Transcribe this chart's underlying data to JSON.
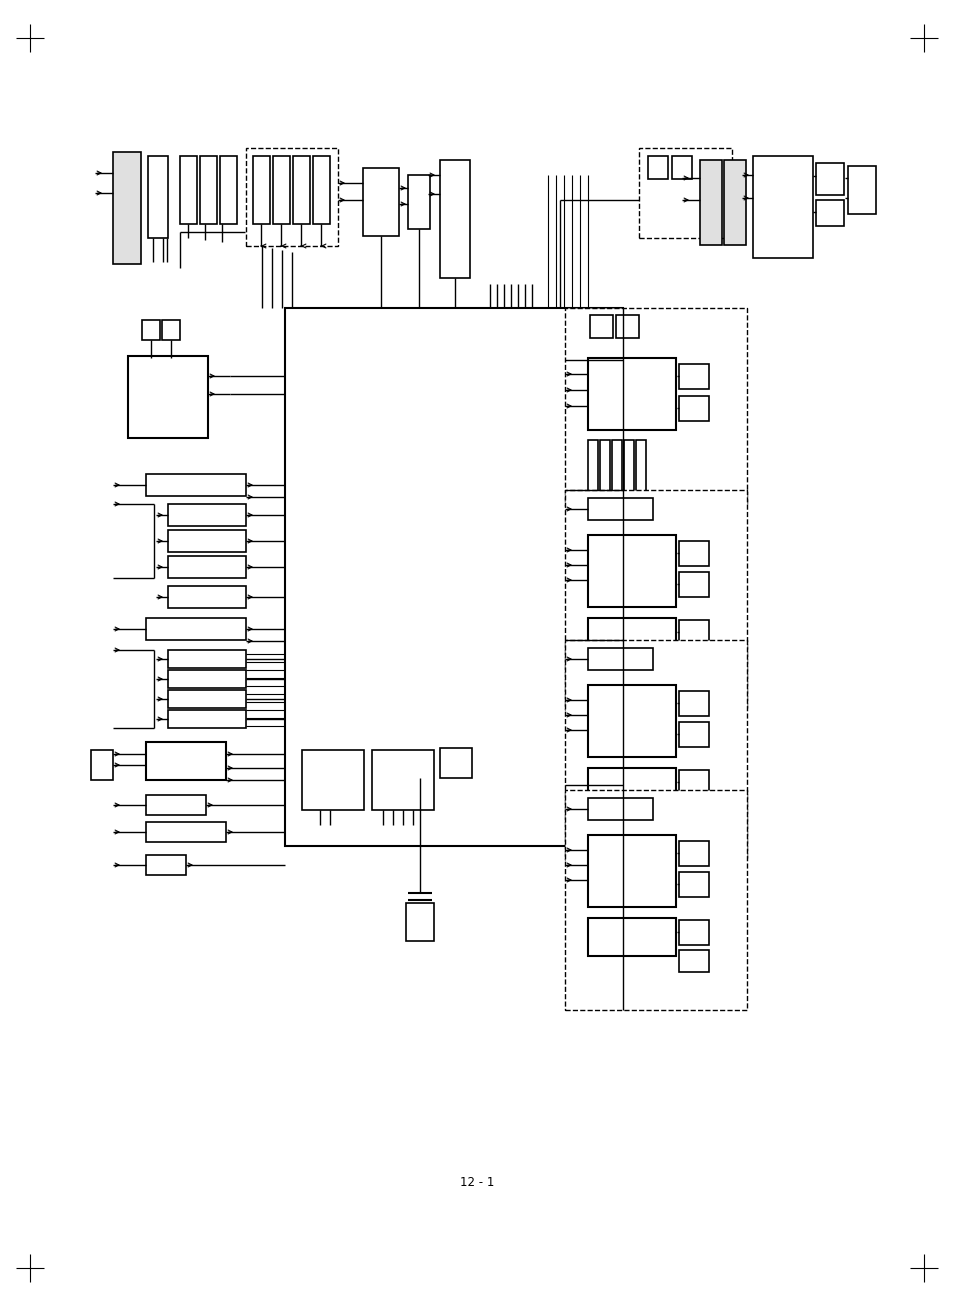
{
  "background_color": "#ffffff",
  "page_label": "12 - 1",
  "fig_width": 9.54,
  "fig_height": 13.06,
  "dpi": 100
}
